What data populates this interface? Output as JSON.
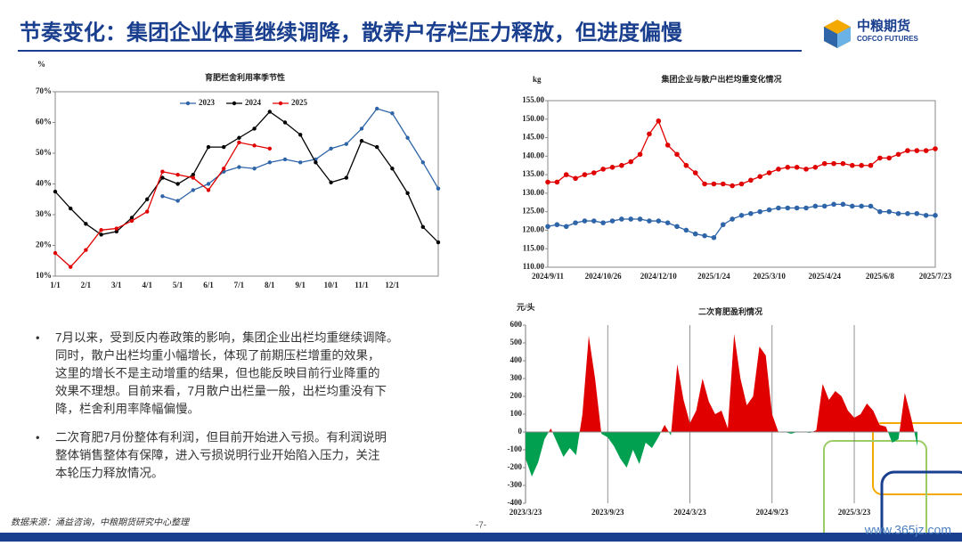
{
  "header": {
    "title": "节奏变化：集团企业体重继续调降，散养户存栏压力释放，但进度偏慢",
    "logo_cn": "中粮期货",
    "logo_en": "COFCO FUTURES"
  },
  "chart_data": [
    {
      "type": "line",
      "title": "育肥栏舍利用率季节性",
      "y_label": "%",
      "legend": "top",
      "categories": [
        "1/1",
        null,
        "2/1",
        null,
        "3/1",
        null,
        "4/1",
        null,
        "5/1",
        null,
        "6/1",
        null,
        "7/1",
        null,
        "8/1",
        null,
        "9/1",
        null,
        "10/1",
        null,
        "11/1",
        null,
        "12/1",
        null,
        null,
        null
      ],
      "series": [
        {
          "name": "2023",
          "color": "#2e64a8",
          "values": [
            null,
            null,
            null,
            null,
            null,
            null,
            null,
            36,
            34.5,
            38,
            40,
            44,
            45.5,
            45,
            47,
            48,
            47,
            48,
            51.5,
            53,
            58,
            64.5,
            63,
            55,
            47,
            38.5
          ]
        },
        {
          "name": "2024",
          "color": "#000000",
          "values": [
            37.5,
            32,
            27,
            23.5,
            24.5,
            29,
            35,
            42,
            40,
            43,
            52,
            52,
            55,
            58,
            63.5,
            60,
            56,
            47,
            40.5,
            42,
            54,
            52,
            45,
            37,
            26,
            21
          ]
        },
        {
          "name": "2025",
          "color": "#e00000",
          "values": [
            17.5,
            13,
            18.5,
            25,
            25.5,
            28,
            31,
            44,
            43,
            42,
            38,
            45,
            53.5,
            52.5,
            51.5,
            null,
            null,
            null,
            null,
            null,
            null,
            null,
            null,
            null,
            null,
            null
          ]
        }
      ],
      "ylim": [
        10,
        70
      ],
      "yticks": [
        {
          "value": 10,
          "label": "10%"
        },
        {
          "value": 20,
          "label": "20%"
        },
        {
          "value": 30,
          "label": "30%"
        },
        {
          "value": 40,
          "label": "40%"
        },
        {
          "value": 50,
          "label": "50%"
        },
        {
          "value": 60,
          "label": "60%"
        },
        {
          "value": 70,
          "label": "70%"
        }
      ]
    },
    {
      "type": "line",
      "title": "集团企业与散户出栏均重变化情况",
      "y_label": "kg",
      "categories": [
        "2024/9/11",
        null,
        null,
        null,
        null,
        null,
        "2024/10/26",
        null,
        null,
        null,
        null,
        null,
        "2024/12/10",
        null,
        null,
        null,
        null,
        null,
        "2025/1/24",
        null,
        null,
        null,
        null,
        null,
        "2025/3/10",
        null,
        null,
        null,
        null,
        null,
        "2025/4/24",
        null,
        null,
        null,
        null,
        null,
        "2025/6/8",
        null,
        null,
        null,
        null,
        null,
        "2025/7/23"
      ],
      "series": [
        {
          "color": "#e00000",
          "values": [
            133,
            133,
            135,
            134,
            135,
            135.5,
            136.5,
            137,
            137.5,
            138.5,
            140.5,
            146,
            149.5,
            143,
            140.5,
            137.5,
            135.5,
            132.5,
            132.5,
            132.5,
            132,
            132.5,
            133.5,
            134.5,
            135.5,
            136.5,
            137,
            137,
            136.5,
            137,
            138,
            138,
            138,
            137.5,
            137.5,
            137.5,
            139.5,
            139.5,
            140.5,
            141.5,
            141.5,
            141.5,
            142
          ]
        },
        {
          "color": "#2e64a8",
          "values": [
            121,
            121.5,
            121,
            122,
            122.5,
            122.5,
            122,
            122.5,
            123,
            123,
            123,
            122.5,
            122.5,
            122,
            121,
            120,
            119,
            118.5,
            118,
            121.5,
            123,
            124,
            124.5,
            125,
            125.5,
            126,
            126,
            126,
            126,
            126.5,
            126.5,
            127,
            127,
            126.5,
            126.5,
            126.5,
            125,
            125,
            124.5,
            124.5,
            124.5,
            124,
            124
          ]
        }
      ],
      "ylim": [
        110,
        155
      ],
      "yticks": [
        {
          "value": 110,
          "label": "110.00"
        },
        {
          "value": 115,
          "label": "115.00"
        },
        {
          "value": 120,
          "label": "120.00"
        },
        {
          "value": 125,
          "label": "125.00"
        },
        {
          "value": 130,
          "label": "130.00"
        },
        {
          "value": 135,
          "label": "135.00"
        },
        {
          "value": 140,
          "label": "140.00"
        },
        {
          "value": 145,
          "label": "145.00"
        },
        {
          "value": 150,
          "label": "150.00"
        },
        {
          "value": 155,
          "label": "155.00"
        }
      ]
    },
    {
      "type": "area",
      "title": "二次育肥盈利情况",
      "y_label": "元/头",
      "grid": "x",
      "color_positive": "#e00000",
      "color_negative": "#00a050",
      "categories": [
        "2023/3/23",
        null,
        null,
        null,
        null,
        null,
        null,
        null,
        null,
        null,
        null,
        null,
        null,
        "2023/9/23",
        null,
        null,
        null,
        null,
        null,
        null,
        null,
        null,
        null,
        null,
        null,
        null,
        "2024/3/23",
        null,
        null,
        null,
        null,
        null,
        null,
        null,
        null,
        null,
        null,
        null,
        null,
        "2024/9/23",
        null,
        null,
        null,
        null,
        null,
        null,
        null,
        null,
        null,
        null,
        null,
        null,
        "2025/3/23",
        null,
        null,
        null,
        null,
        null,
        null,
        null,
        null,
        null,
        null
      ],
      "values": [
        -150,
        -250,
        -170,
        -40,
        20,
        -60,
        -140,
        -90,
        -130,
        100,
        540,
        300,
        -10,
        -30,
        -80,
        -150,
        -200,
        -100,
        -180,
        -60,
        -90,
        -30,
        40,
        -20,
        380,
        180,
        50,
        120,
        300,
        170,
        100,
        120,
        20,
        550,
        300,
        150,
        200,
        480,
        430,
        100,
        0,
        0,
        -10,
        0,
        0,
        -5,
        10,
        270,
        180,
        230,
        200,
        120,
        80,
        100,
        160,
        120,
        40,
        30,
        -60,
        -40,
        220,
        80,
        -80
      ],
      "ylim": [
        -400,
        600
      ],
      "yticks": [
        -400,
        -300,
        -200,
        -100,
        0,
        100,
        200,
        300,
        400,
        500,
        600
      ]
    }
  ],
  "bullets": [
    [
      "7月以来，受到反内卷政策的影响，集团企业出栏均重继续调降。",
      "同时，散户出栏均重小幅增长，体现了前期压栏增重的效果，",
      "这里的增长不是主动增重的结果，但也能反映目前行业降重的",
      "效果不理想。目前来看，7月散户出栏量一般，出栏均重没有下",
      "降，栏舍利用率降幅偏慢。"
    ],
    [
      "二次育肥7月份整体有利润，但目前开始进入亏损。有利润说明",
      "整体销售整体有保障，进入亏损说明行业开始陷入压力，关注",
      "本轮压力释放情况。"
    ]
  ],
  "footer": {
    "source": "数据来源：涌益咨询，中粮期货研究中心整理",
    "page": "-7-",
    "watermark": "www.365jz.com"
  }
}
